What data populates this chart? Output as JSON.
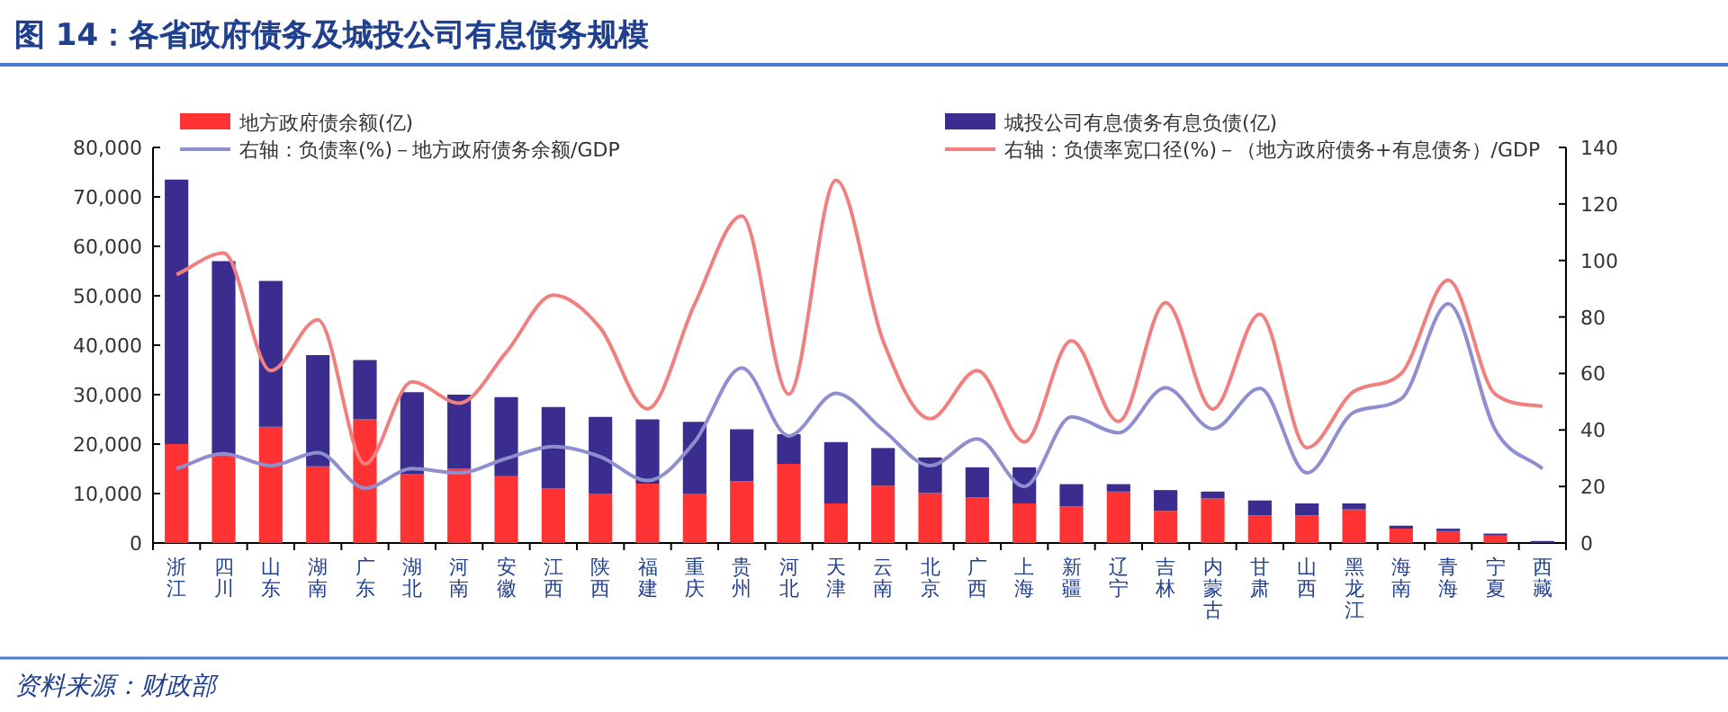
{
  "chart_data": {
    "type": "bar",
    "stacked": true,
    "title": "图 14：各省政府债务及城投公司有息债务规模",
    "annotations": [
      "资料来源：财政部"
    ],
    "categories": [
      "浙江",
      "四川",
      "山东",
      "湖南",
      "广东",
      "湖北",
      "河南",
      "安徽",
      "江西",
      "陕西",
      "福建",
      "重庆",
      "贵州",
      "河北",
      "天津",
      "云南",
      "北京",
      "广西",
      "上海",
      "新疆",
      "辽宁",
      "吉林",
      "内蒙古",
      "甘肃",
      "山西",
      "黑龙江",
      "海南",
      "青海",
      "宁夏",
      "西藏"
    ],
    "series": [
      {
        "name": "地方政府债余额(亿)",
        "color": "#ff3333",
        "values": [
          20000,
          18000,
          23500,
          15500,
          25000,
          14000,
          15000,
          13500,
          11000,
          10000,
          12000,
          10000,
          12500,
          16000,
          8000,
          11600,
          10100,
          9200,
          8000,
          7400,
          10400,
          6500,
          9000,
          5600,
          5600,
          6800,
          2900,
          2400,
          1500,
          null
        ]
      },
      {
        "name": "城投公司有息债务有息负债(亿)",
        "color": "#3a2d8f",
        "values": [
          53500,
          39000,
          29500,
          22500,
          12000,
          16500,
          15000,
          16000,
          16500,
          15500,
          13000,
          14500,
          10500,
          6000,
          12400,
          7600,
          7200,
          6100,
          7300,
          4500,
          1500,
          4200,
          1400,
          3000,
          2400,
          1200,
          600,
          500,
          400,
          400
        ]
      },
      {
        "name": "右轴：负债率(%)－地方政府债务余额/GDP",
        "type": "line",
        "axis": "y2",
        "color": "#8f8fd0",
        "values": [
          26.3,
          31.6,
          27.4,
          32,
          19.4,
          26.3,
          24.8,
          29.9,
          34.1,
          30.5,
          22.1,
          35.8,
          62,
          37.9,
          53,
          40,
          27.4,
          36.8,
          20,
          44.6,
          39,
          55,
          40.4,
          54.7,
          24.8,
          46.3,
          51,
          84.6,
          40,
          26.3
        ]
      },
      {
        "name": "右轴：负债率宽口径(%)－（地方政府债务+有息债务）/GDP",
        "type": "line",
        "axis": "y2",
        "color": "#f08080",
        "values": [
          95,
          102.6,
          61,
          79,
          28,
          57,
          49.5,
          67.5,
          87.7,
          76,
          47.5,
          84.5,
          115.7,
          52.7,
          128.4,
          71.6,
          44,
          61,
          35.8,
          71.6,
          43,
          85,
          47.4,
          81,
          33.7,
          53.7,
          60,
          93,
          52.6,
          48.4
        ]
      }
    ],
    "ylim": [
      0,
      80000
    ],
    "yticks": [
      0,
      {
        "value": 10000,
        "label": "10,000"
      },
      {
        "value": 20000,
        "label": "20,000"
      },
      {
        "value": 30000,
        "label": "30,000"
      },
      {
        "value": 40000,
        "label": "40,000"
      },
      {
        "value": 50000,
        "label": "50,000"
      },
      {
        "value": 60000,
        "label": "60,000"
      },
      {
        "value": 70000,
        "label": "70,000"
      },
      {
        "value": 80000,
        "label": "80,000"
      }
    ],
    "y2lim": [
      0,
      140
    ],
    "y2ticks": [
      0,
      20,
      40,
      60,
      80,
      100,
      120,
      140
    ],
    "legend": "top",
    "grid": false
  }
}
